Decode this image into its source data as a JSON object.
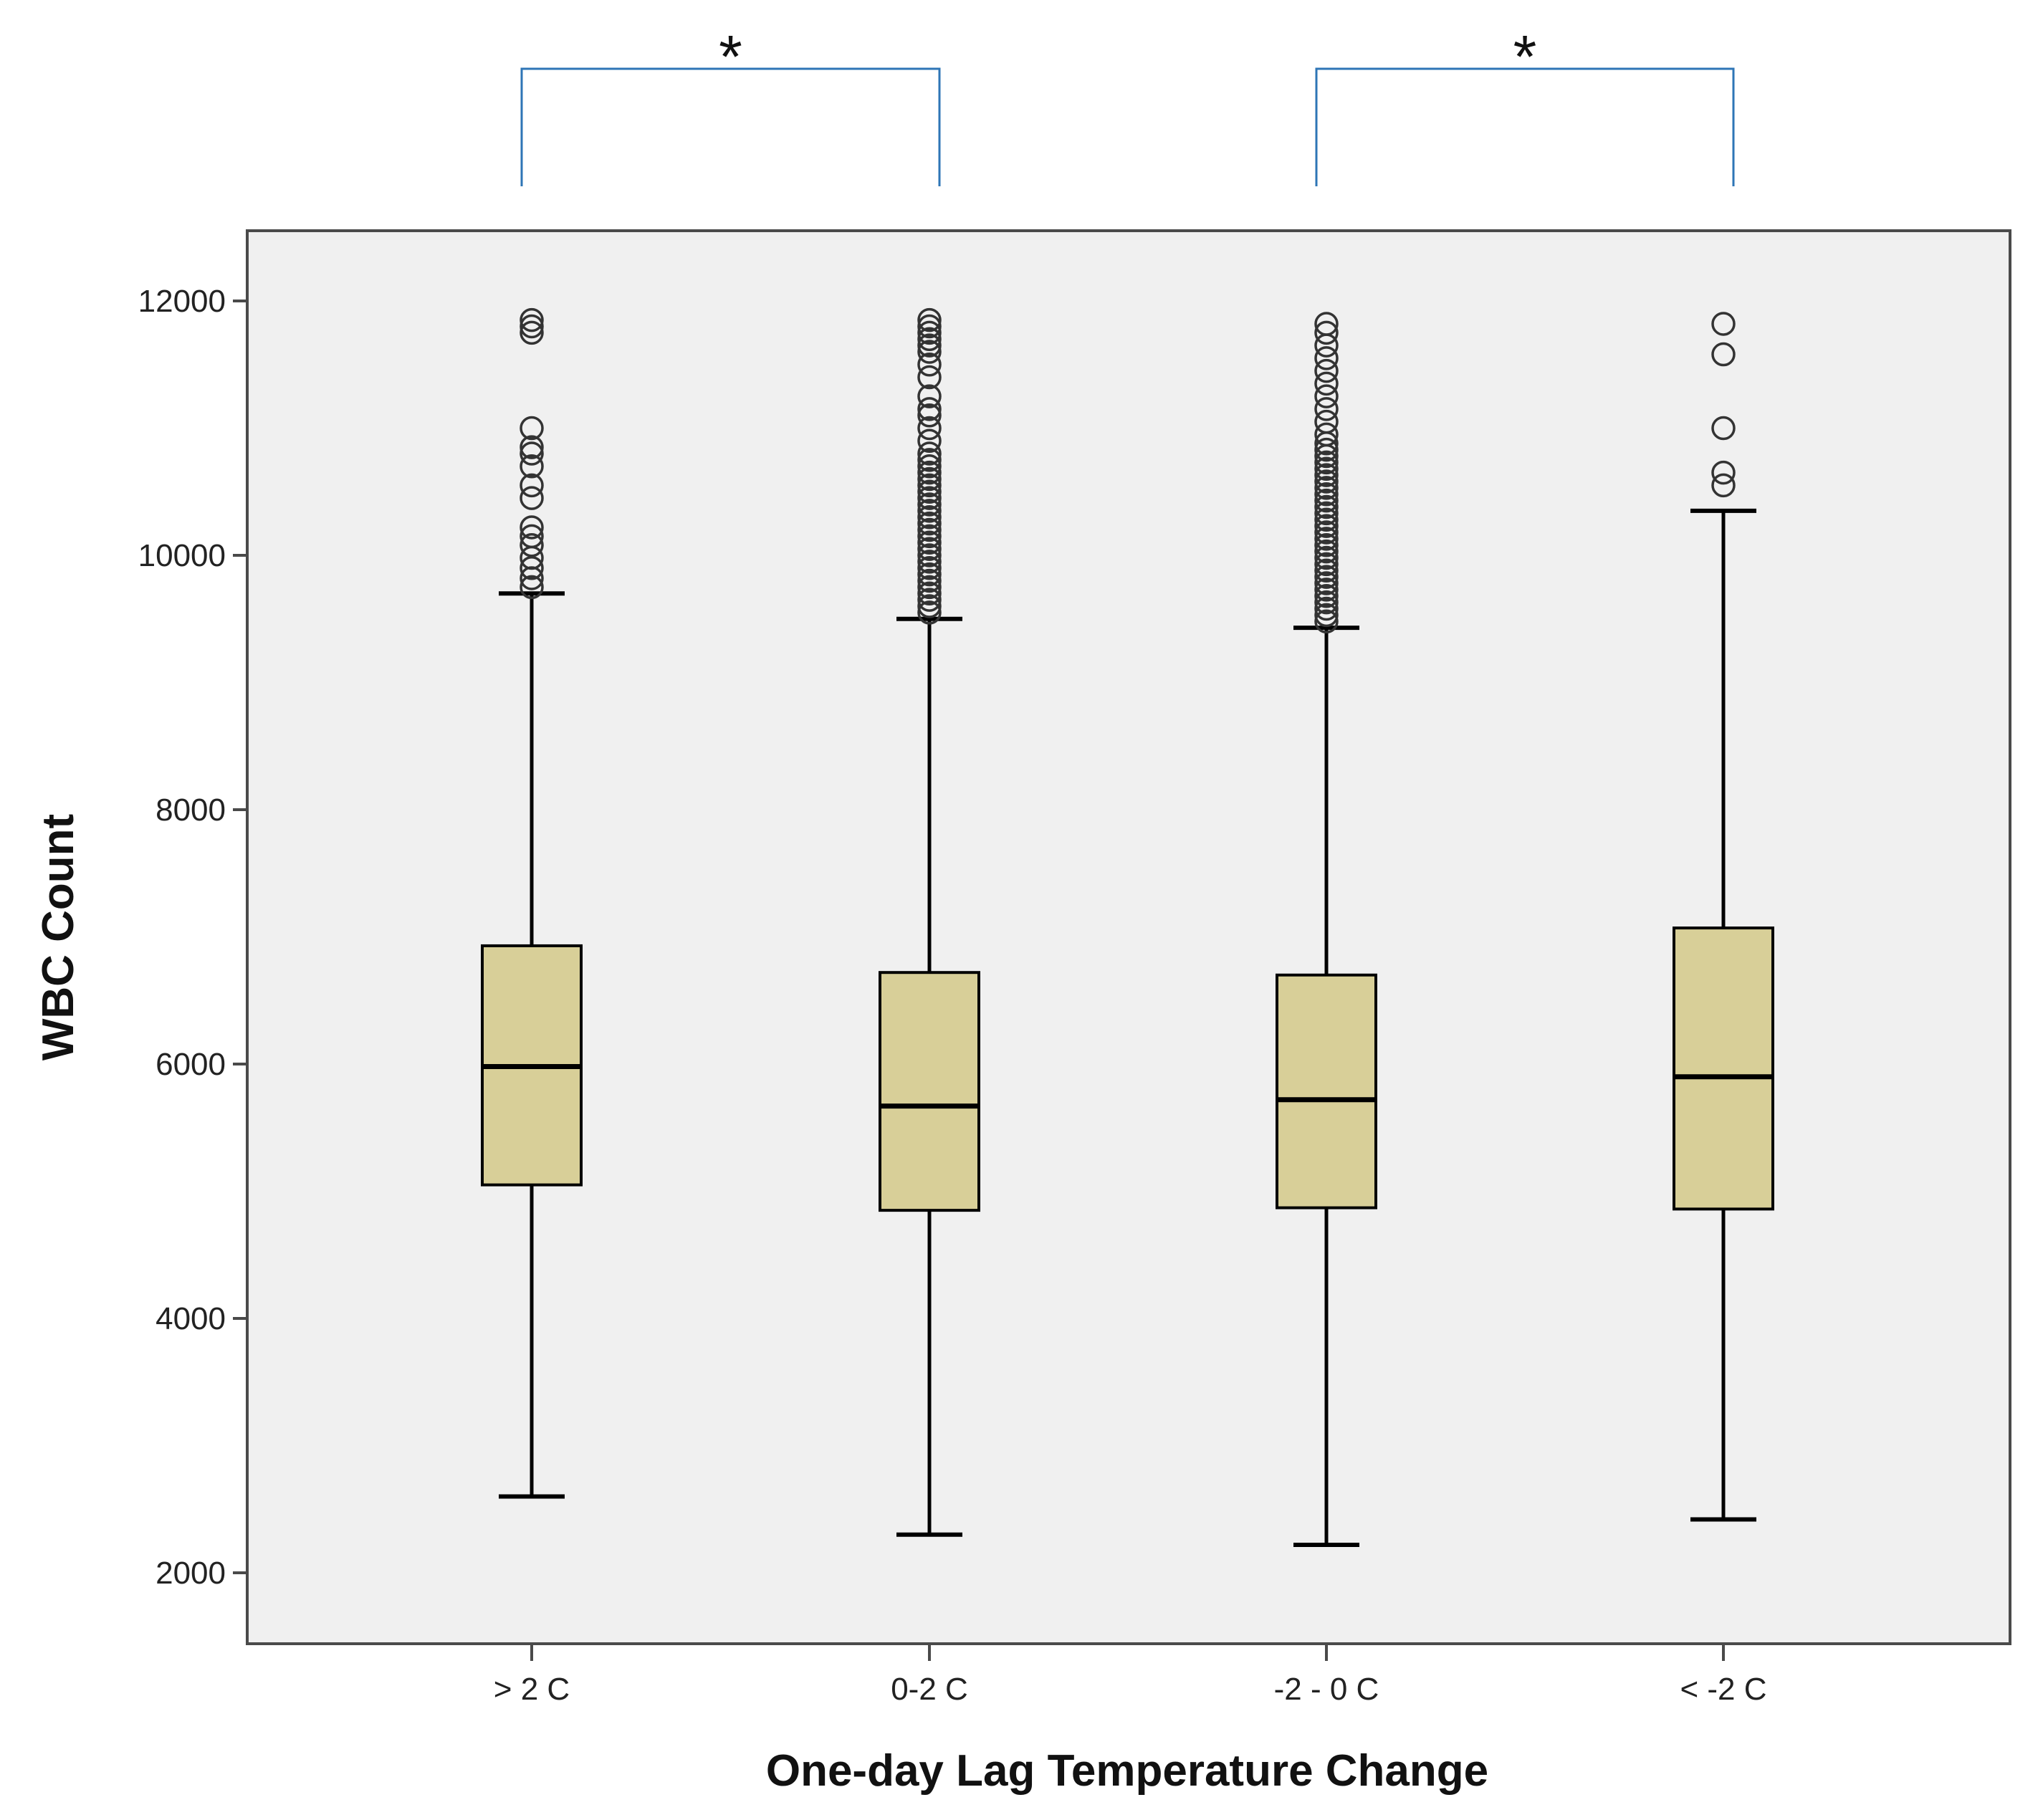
{
  "chart_data": {
    "type": "box",
    "xlabel": "One-day Lag Temperature Change",
    "ylabel": "WBC Count",
    "ylim": [
      1800,
      12500
    ],
    "yticks": [
      2000,
      4000,
      6000,
      8000,
      10000,
      12000
    ],
    "grid": false,
    "categories": [
      "> 2 C",
      "0-2 C",
      "-2 - 0 C",
      "< -2 C"
    ],
    "boxes": [
      {
        "category": "> 2 C",
        "whisker_low": 2600,
        "q1": 5050,
        "median": 5980,
        "q3": 6930,
        "whisker_high": 9700,
        "outliers": [
          9750,
          9820,
          9900,
          9980,
          10080,
          10150,
          10220,
          10450,
          10550,
          10700,
          10800,
          10850,
          11000,
          11750,
          11800,
          11850
        ]
      },
      {
        "category": "0-2 C",
        "whisker_low": 2300,
        "q1": 4850,
        "median": 5670,
        "q3": 6720,
        "whisker_high": 9500,
        "outliers": [
          9550,
          9600,
          9650,
          9700,
          9750,
          9800,
          9850,
          9900,
          9950,
          10000,
          10050,
          10100,
          10150,
          10200,
          10250,
          10300,
          10350,
          10400,
          10450,
          10500,
          10550,
          10600,
          10650,
          10700,
          10750,
          10800,
          10900,
          11000,
          11100,
          11150,
          11250,
          11400,
          11500,
          11600,
          11650,
          11700,
          11750,
          11800,
          11850
        ]
      },
      {
        "category": "-2 - 0 C",
        "whisker_low": 2220,
        "q1": 4870,
        "median": 5720,
        "q3": 6700,
        "whisker_high": 9430,
        "outliers": [
          9480,
          9530,
          9580,
          9630,
          9680,
          9730,
          9780,
          9830,
          9880,
          9930,
          9980,
          10030,
          10080,
          10130,
          10180,
          10230,
          10280,
          10330,
          10380,
          10430,
          10480,
          10530,
          10580,
          10630,
          10680,
          10730,
          10780,
          10830,
          10880,
          10950,
          11050,
          11150,
          11250,
          11350,
          11450,
          11550,
          11650,
          11750,
          11820
        ]
      },
      {
        "category": "< -2 C",
        "whisker_low": 2420,
        "q1": 4860,
        "median": 5900,
        "q3": 7070,
        "whisker_high": 10350,
        "outliers": [
          10550,
          10650,
          11000,
          11580,
          11820
        ]
      }
    ],
    "significance": [
      {
        "from": "> 2 C",
        "to": "0-2 C",
        "label": "*"
      },
      {
        "from": "-2 - 0 C",
        "to": "< -2 C",
        "label": "*"
      }
    ],
    "colors": {
      "box_fill": "#d8cf98",
      "plot_background": "#f0f0f0",
      "bracket": "#2e75b6",
      "axis": "#4a4a4a",
      "outlier_stroke": "#333333"
    }
  }
}
